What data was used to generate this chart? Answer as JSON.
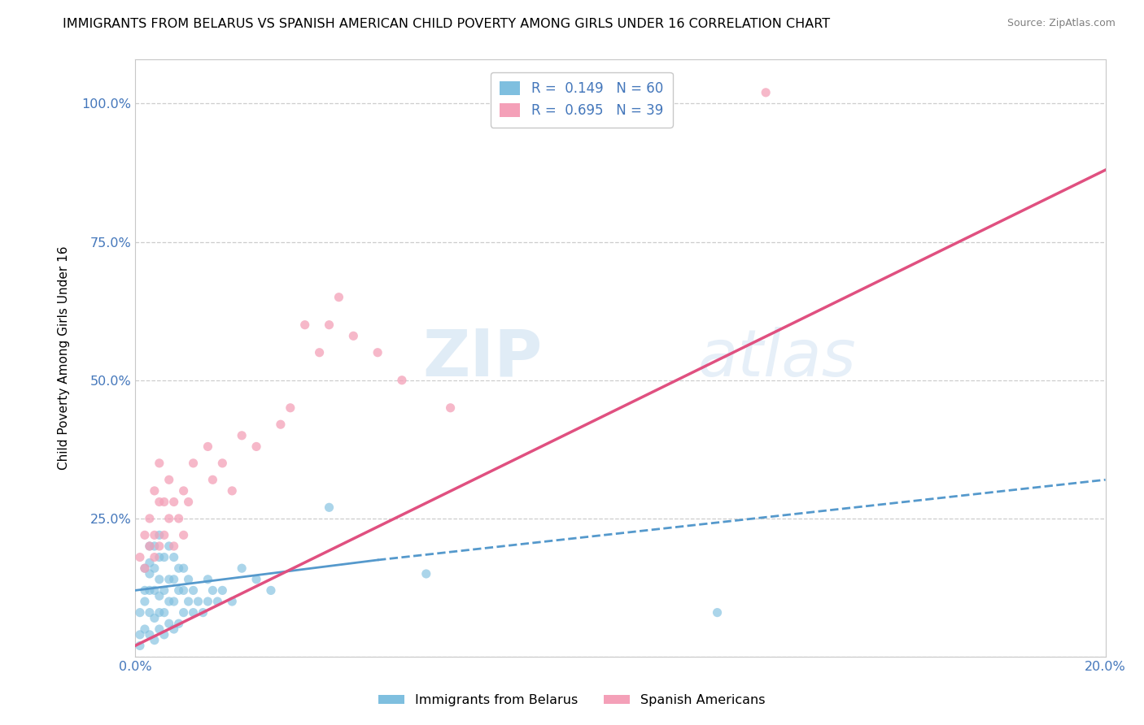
{
  "title": "IMMIGRANTS FROM BELARUS VS SPANISH AMERICAN CHILD POVERTY AMONG GIRLS UNDER 16 CORRELATION CHART",
  "source": "Source: ZipAtlas.com",
  "xlabel": "",
  "ylabel": "Child Poverty Among Girls Under 16",
  "xmin": 0.0,
  "xmax": 0.2,
  "ymin": 0.0,
  "ymax": 1.08,
  "xticks": [
    0.0,
    0.05,
    0.1,
    0.15,
    0.2
  ],
  "xtick_labels": [
    "0.0%",
    "",
    "",
    "",
    "20.0%"
  ],
  "yticks": [
    0.0,
    0.25,
    0.5,
    0.75,
    1.0
  ],
  "ytick_labels": [
    "",
    "25.0%",
    "50.0%",
    "75.0%",
    "100.0%"
  ],
  "blue_color": "#7fbfdf",
  "pink_color": "#f4a0b8",
  "trend_blue_color": "#5599cc",
  "trend_pink_color": "#e05080",
  "legend_r_blue": "R =  0.149   N = 60",
  "legend_r_pink": "R =  0.695   N = 39",
  "blue_scatter_x": [
    0.001,
    0.001,
    0.001,
    0.002,
    0.002,
    0.002,
    0.002,
    0.003,
    0.003,
    0.003,
    0.003,
    0.003,
    0.003,
    0.004,
    0.004,
    0.004,
    0.004,
    0.004,
    0.005,
    0.005,
    0.005,
    0.005,
    0.005,
    0.005,
    0.006,
    0.006,
    0.006,
    0.006,
    0.007,
    0.007,
    0.007,
    0.007,
    0.008,
    0.008,
    0.008,
    0.008,
    0.009,
    0.009,
    0.009,
    0.01,
    0.01,
    0.01,
    0.011,
    0.011,
    0.012,
    0.012,
    0.013,
    0.014,
    0.015,
    0.015,
    0.016,
    0.017,
    0.018,
    0.02,
    0.022,
    0.025,
    0.028,
    0.04,
    0.06,
    0.12
  ],
  "blue_scatter_y": [
    0.02,
    0.04,
    0.08,
    0.05,
    0.1,
    0.12,
    0.16,
    0.04,
    0.08,
    0.12,
    0.15,
    0.17,
    0.2,
    0.03,
    0.07,
    0.12,
    0.16,
    0.2,
    0.05,
    0.08,
    0.11,
    0.14,
    0.18,
    0.22,
    0.04,
    0.08,
    0.12,
    0.18,
    0.06,
    0.1,
    0.14,
    0.2,
    0.05,
    0.1,
    0.14,
    0.18,
    0.06,
    0.12,
    0.16,
    0.08,
    0.12,
    0.16,
    0.1,
    0.14,
    0.08,
    0.12,
    0.1,
    0.08,
    0.1,
    0.14,
    0.12,
    0.1,
    0.12,
    0.1,
    0.16,
    0.14,
    0.12,
    0.27,
    0.15,
    0.08
  ],
  "pink_scatter_x": [
    0.001,
    0.002,
    0.002,
    0.003,
    0.003,
    0.004,
    0.004,
    0.004,
    0.005,
    0.005,
    0.005,
    0.006,
    0.006,
    0.007,
    0.007,
    0.008,
    0.008,
    0.009,
    0.01,
    0.01,
    0.011,
    0.012,
    0.015,
    0.016,
    0.018,
    0.02,
    0.022,
    0.025,
    0.03,
    0.032,
    0.035,
    0.038,
    0.04,
    0.042,
    0.045,
    0.05,
    0.055,
    0.065,
    0.13
  ],
  "pink_scatter_y": [
    0.18,
    0.16,
    0.22,
    0.2,
    0.25,
    0.18,
    0.22,
    0.3,
    0.2,
    0.28,
    0.35,
    0.22,
    0.28,
    0.25,
    0.32,
    0.2,
    0.28,
    0.25,
    0.22,
    0.3,
    0.28,
    0.35,
    0.38,
    0.32,
    0.35,
    0.3,
    0.4,
    0.38,
    0.42,
    0.45,
    0.6,
    0.55,
    0.6,
    0.65,
    0.58,
    0.55,
    0.5,
    0.45,
    1.02
  ],
  "blue_trend_x": [
    0.0,
    0.05,
    0.2
  ],
  "blue_trend_y": [
    0.12,
    0.175,
    0.32
  ],
  "blue_trend_solid_end": 0.05,
  "pink_trend_x": [
    0.0,
    0.2
  ],
  "pink_trend_y": [
    0.02,
    0.88
  ],
  "watermark_zip": "ZIP",
  "watermark_atlas": "atlas",
  "background_color": "#ffffff",
  "grid_color": "#c8c8c8",
  "axis_color": "#4477bb",
  "title_fontsize": 11.5,
  "label_fontsize": 10
}
